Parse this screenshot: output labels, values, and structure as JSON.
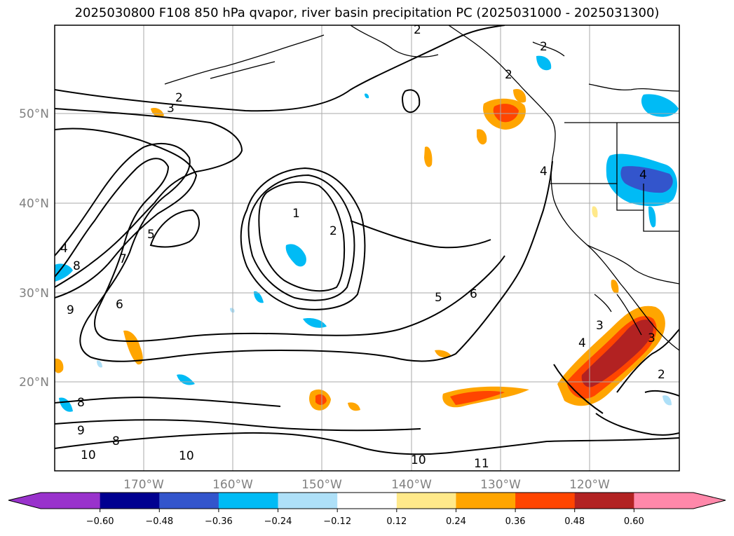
{
  "title": "2025030800 F108 850 hPa qvapor, river basin precipitation PC (2025031000 - 2025031300)",
  "lat_labels": [
    "50°N",
    "40°N",
    "30°N",
    "20°N"
  ],
  "lon_labels": [
    "170°W",
    "160°W",
    "150°W",
    "140°W",
    "130°W",
    "120°W"
  ],
  "colorbar": {
    "ticks": [
      "−0.60",
      "−0.48",
      "−0.36",
      "−0.24",
      "−0.12",
      "0.12",
      "0.24",
      "0.36",
      "0.48",
      "0.60"
    ],
    "under_color": "#9932cc",
    "over_color": "#ff88aa",
    "colors": [
      "#000090",
      "#3355cc",
      "#00bbf5",
      "#aee0f8",
      "#ffffff",
      "#ffe98a",
      "#ffa500",
      "#ff4500",
      "#b22222"
    ]
  },
  "contour_labels": [
    "1",
    "2",
    "2",
    "2",
    "2",
    "2",
    "2",
    "3",
    "3",
    "3",
    "4",
    "4",
    "4",
    "4",
    "5",
    "5",
    "6",
    "6",
    "7",
    "8",
    "8",
    "8",
    "9",
    "9",
    "10",
    "10",
    "10",
    "11"
  ]
}
